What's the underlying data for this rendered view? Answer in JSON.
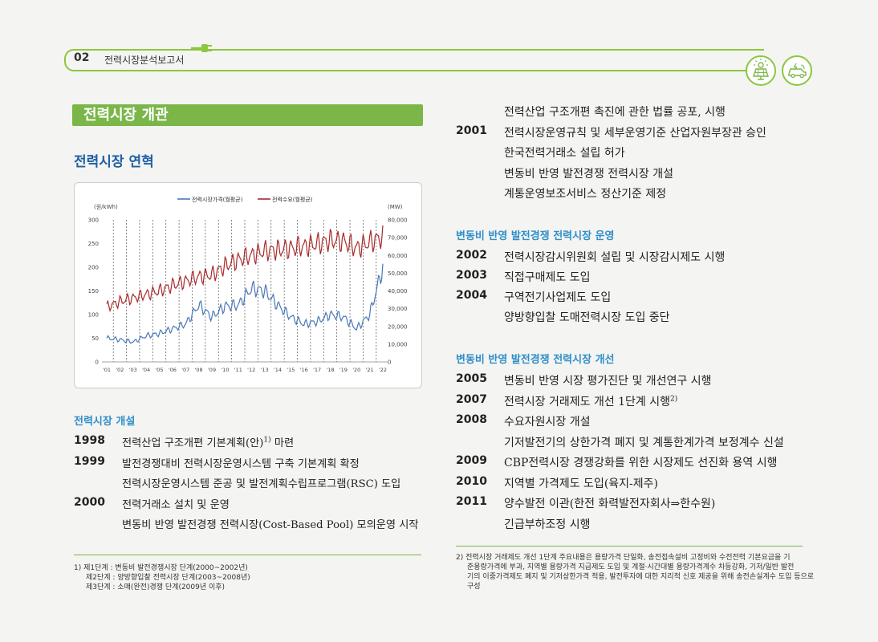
{
  "header": {
    "page_number": "02",
    "report_title": "전력시장분석보고서",
    "icons": [
      "solar-panel-icon",
      "electric-car-icon"
    ]
  },
  "section_title": "전력시장 개관",
  "subsection_title": "전력시장 연혁",
  "chart_data": {
    "type": "line",
    "legend": [
      "전력시장가격(월평균)",
      "전력수요(월평균)"
    ],
    "legend_position": "top",
    "y_left_label": "(원/kWh)",
    "y_right_label": "(MW)",
    "y_left_ticks": [
      "300",
      "250",
      "200",
      "150",
      "100",
      "50",
      "0"
    ],
    "y_right_ticks": [
      "80,000",
      "70,000",
      "60,000",
      "50,000",
      "40,000",
      "30,000",
      "20,000",
      "10,000",
      "0"
    ],
    "ylim_left": [
      0,
      300
    ],
    "ylim_right": [
      0,
      80000
    ],
    "x_ticks": [
      "'01",
      "'02",
      "'03",
      "'04",
      "'05",
      "'06",
      "'07",
      "'08",
      "'09",
      "'10",
      "'11",
      "'12",
      "'13",
      "'14",
      "'15",
      "'16",
      "'17",
      "'18",
      "'19",
      "'20",
      "'21",
      "'22"
    ],
    "grid": "vertical dashed",
    "series": [
      {
        "name": "전력시장가격(월평균)",
        "color": "#4a78b8",
        "axis": "left",
        "annual": [
          50,
          47,
          42,
          55,
          60,
          70,
          80,
          120,
          95,
          118,
          120,
          155,
          150,
          120,
          95,
          80,
          85,
          100,
          95,
          70,
          100,
          200
        ]
      },
      {
        "name": "전력수요(월평균)",
        "color": "#a72a2a",
        "axis": "right",
        "annual": [
          31000,
          34000,
          36000,
          38000,
          40000,
          43000,
          45500,
          48000,
          49000,
          54000,
          57500,
          60000,
          62500,
          63000,
          64000,
          65000,
          66500,
          68500,
          68000,
          64000,
          67500,
          70500
        ]
      }
    ]
  },
  "left_history": {
    "heading": "전력시장 개설",
    "rows": [
      {
        "year": "1998",
        "text": "전력산업 구조개편 기본계획(안)",
        "sup": "1)",
        "tail": " 마련"
      },
      {
        "year": "1999",
        "text": "발전경쟁대비 전력시장운영시스템 구축 기본계획 확정"
      },
      {
        "year": "",
        "text": "전력시장운영시스템 준공 및 발전계획수립프로그램(RSC) 도입"
      },
      {
        "year": "2000",
        "text": "전력거래소 설치 및 운영"
      },
      {
        "year": "",
        "text": "변동비 반영 발전경쟁 전력시장(Cost-Based Pool) 모의운영 시작"
      }
    ]
  },
  "left_footnote": [
    "1) 제1단계 : 변동비 발전경쟁시장 단계(2000~2002년)",
    "제2단계 : 양방향입찰 전력시장 단계(2003~2008년)",
    "제3단계 : 소매(완전)경쟁 단계(2009년 이후)"
  ],
  "right_top_rows": [
    {
      "year": "",
      "text": "전력산업 구조개편 촉진에 관한 법률 공포, 시행"
    },
    {
      "year": "2001",
      "text": "전력시장운영규칙 및 세부운영기준 산업자원부장관 승인"
    },
    {
      "year": "",
      "text": "한국전력거래소 설립 허가"
    },
    {
      "year": "",
      "text": "변동비 반영 발전경쟁 전력시장 개설"
    },
    {
      "year": "",
      "text": "계통운영보조서비스 정산기준 제정"
    }
  ],
  "right_operation": {
    "heading": "변동비 반영 발전경쟁 전력시장 운영",
    "rows": [
      {
        "year": "2002",
        "text": "전력시장감시위원회 설립 및 시장감시제도 시행"
      },
      {
        "year": "2003",
        "text": "직접구매제도 도입"
      },
      {
        "year": "2004",
        "text": "구역전기사업제도 도입"
      },
      {
        "year": "",
        "text": "양방향입찰 도매전력시장 도입 중단"
      }
    ]
  },
  "right_improvement": {
    "heading": "변동비 반영 발전경쟁 전력시장 개선",
    "rows": [
      {
        "year": "2005",
        "text": "변동비 반영 시장 평가진단 및 개선연구 시행"
      },
      {
        "year": "2007",
        "text": "전력시장 거래제도 개선 1단계 시행",
        "sup": "2)"
      },
      {
        "year": "2008",
        "text": "수요자원시장 개설"
      },
      {
        "year": "",
        "text": "기저발전기의 상한가격 폐지 및 계통한계가격 보정계수 신설"
      },
      {
        "year": "2009",
        "text": "CBP전력시장 경쟁강화를 위한 시장제도 선진화 용역 시행"
      },
      {
        "year": "2010",
        "text": "지역별 가격제도 도입(육지-제주)"
      },
      {
        "year": "2011",
        "text": "양수발전 이관(한전 화력발전자회사⇒한수원)"
      },
      {
        "year": "",
        "text": "긴급부하조정 시행"
      }
    ]
  },
  "right_footnote": [
    "2) 전력시장 거래제도 개선 1단계 주요내용은 용량가격 단일화, 송전접속설비 고정비와 수전전력 기본요금을 기",
    "준용량가격에 부과, 지역별 용량가격 지급제도 도입 및 계절·시간대별 용량가격계수 차등강화, 기저/일반 발전",
    "기의 이중가격제도 폐지 및 기저상한가격 적용, 발전투자에 대한 지리적 신호 제공을 위해 송전손실계수 도입 등으로",
    "구성"
  ]
}
